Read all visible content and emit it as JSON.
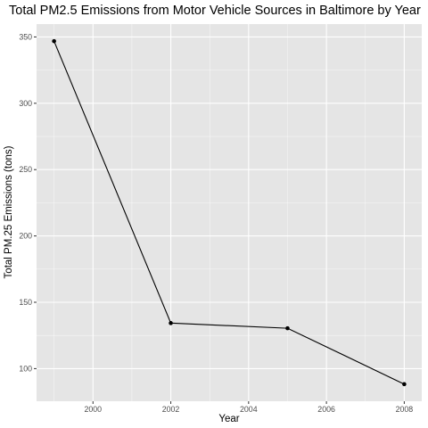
{
  "chart_data": {
    "type": "line",
    "title": "Total PM2.5 Emissions from Motor Vehicle Sources in Baltimore by Year",
    "xlabel": "Year",
    "ylabel": "Total PM.25 Emissions (tons)",
    "x": [
      1999,
      2002,
      2005,
      2008
    ],
    "series": [
      {
        "values": [
          346.82,
          134.31,
          130.43,
          88.28
        ]
      }
    ],
    "xlim": [
      1998.55,
      2008.45
    ],
    "ylim": [
      75.4,
      359.7
    ],
    "x_ticks": [
      2000,
      2002,
      2004,
      2006,
      2008
    ],
    "y_ticks": [
      100,
      150,
      200,
      250,
      300,
      350
    ],
    "grid": true,
    "colors": {
      "panel_background": "#e5e5e5",
      "grid_major": "#ffffff",
      "line": "#000000",
      "point": "#000000",
      "tick_text": "#4d4d4d"
    }
  }
}
